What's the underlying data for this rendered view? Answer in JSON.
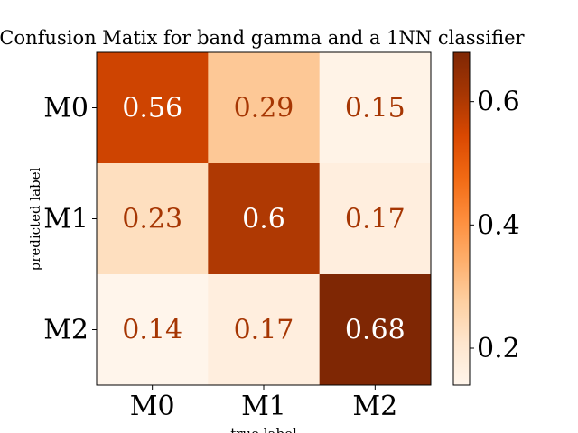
{
  "chart_data": {
    "type": "heatmap",
    "title": "Confusion Matix for band gamma and a 1NN classifier",
    "xlabel": "true label",
    "ylabel": "predicted label",
    "x_categories": [
      "M0",
      "M1",
      "M2"
    ],
    "y_categories": [
      "M0",
      "M1",
      "M2"
    ],
    "values": [
      [
        0.56,
        0.29,
        0.15
      ],
      [
        0.23,
        0.6,
        0.17
      ],
      [
        0.14,
        0.17,
        0.68
      ]
    ],
    "value_labels": [
      [
        "0.56",
        "0.29",
        "0.15"
      ],
      [
        "0.23",
        "0.6",
        "0.17"
      ],
      [
        "0.14",
        "0.17",
        "0.68"
      ]
    ],
    "colormap": "Oranges",
    "color_range": [
      0.14,
      0.68
    ],
    "colorbar_ticks": [
      0.2,
      0.4,
      0.6
    ],
    "colorbar_tick_labels": [
      "0.2",
      "0.4",
      "0.6"
    ],
    "label_color_dark": "#a63603",
    "label_color_light": "#ffffff"
  }
}
